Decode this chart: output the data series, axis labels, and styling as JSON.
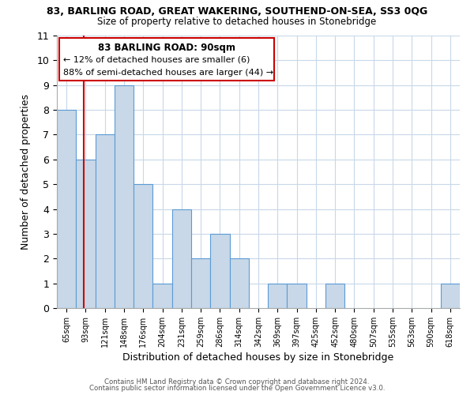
{
  "title_line1": "83, BARLING ROAD, GREAT WAKERING, SOUTHEND-ON-SEA, SS3 0QG",
  "title_line2": "Size of property relative to detached houses in Stonebridge",
  "xlabel": "Distribution of detached houses by size in Stonebridge",
  "ylabel": "Number of detached properties",
  "bin_labels": [
    "65sqm",
    "93sqm",
    "121sqm",
    "148sqm",
    "176sqm",
    "204sqm",
    "231sqm",
    "259sqm",
    "286sqm",
    "314sqm",
    "342sqm",
    "369sqm",
    "397sqm",
    "425sqm",
    "452sqm",
    "480sqm",
    "507sqm",
    "535sqm",
    "563sqm",
    "590sqm",
    "618sqm"
  ],
  "bar_heights": [
    8,
    6,
    7,
    9,
    5,
    1,
    4,
    2,
    3,
    2,
    0,
    1,
    1,
    0,
    1,
    0,
    0,
    0,
    0,
    0,
    1
  ],
  "bar_color": "#c8d8e8",
  "bar_edge_color": "#5b9bd5",
  "annotation_title": "83 BARLING ROAD: 90sqm",
  "annotation_line1": "← 12% of detached houses are smaller (6)",
  "annotation_line2": "88% of semi-detached houses are larger (44) →",
  "vline_color": "#cc0000",
  "annotation_box_edge": "#cc0000",
  "ylim": [
    0,
    11
  ],
  "yticks": [
    0,
    1,
    2,
    3,
    4,
    5,
    6,
    7,
    8,
    9,
    10,
    11
  ],
  "footer_line1": "Contains HM Land Registry data © Crown copyright and database right 2024.",
  "footer_line2": "Contains public sector information licensed under the Open Government Licence v3.0.",
  "background_color": "#ffffff",
  "grid_color": "#c8d8e8",
  "label_values": [
    65,
    93,
    121,
    148,
    176,
    204,
    231,
    259,
    286,
    314,
    342,
    369,
    397,
    425,
    452,
    480,
    507,
    535,
    563,
    590,
    618
  ],
  "prop_value": 90
}
